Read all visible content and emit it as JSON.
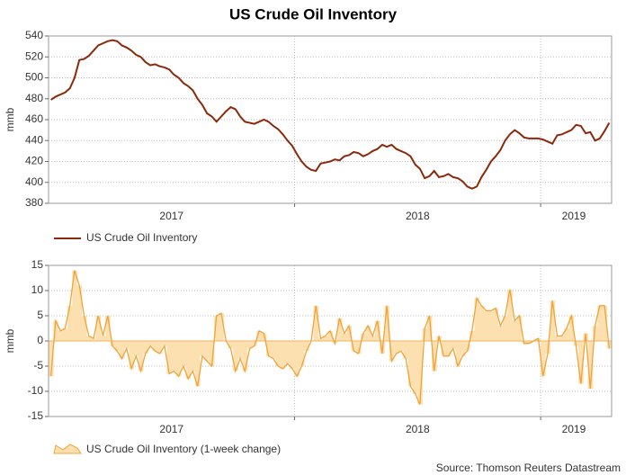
{
  "title": "US Crude Oil Inventory",
  "source": "Source: Thomson Reuters Datastream",
  "chart_data": [
    {
      "type": "line",
      "ylabel": "mmb",
      "xlim": [
        0,
        119
      ],
      "xticks": [
        {
          "value": 26,
          "label": "2017"
        },
        {
          "value": 78,
          "label": "2018"
        },
        {
          "value": 111,
          "label": "2019"
        }
      ],
      "xgrid": [
        52,
        104
      ],
      "ylim": [
        380,
        540
      ],
      "yticks": [
        380,
        400,
        420,
        440,
        460,
        480,
        500,
        520,
        540
      ],
      "grid": true,
      "series": [
        {
          "name": "US Crude Oil Inventory",
          "color": "#8b2a0a",
          "values": [
            479,
            482,
            484,
            486,
            490,
            500,
            517,
            518,
            521,
            526,
            531,
            533,
            535,
            536,
            535,
            531,
            529,
            526,
            522,
            520,
            515,
            512,
            513,
            511,
            510,
            508,
            503,
            500,
            495,
            492,
            488,
            480,
            474,
            466,
            463,
            458,
            463,
            468,
            472,
            470,
            463,
            458,
            457,
            456,
            458,
            460,
            458,
            454,
            451,
            446,
            440,
            435,
            427,
            420,
            415,
            412,
            411,
            418,
            419,
            420,
            422,
            421,
            425,
            426,
            429,
            428,
            425,
            427,
            430,
            432,
            436,
            434,
            436,
            432,
            430,
            428,
            425,
            417,
            413,
            404,
            406,
            411,
            405,
            406,
            408,
            405,
            404,
            401,
            396,
            394,
            396,
            405,
            412,
            420,
            425,
            431,
            440,
            446,
            450,
            447,
            443,
            442,
            442,
            442,
            441,
            439,
            437,
            445,
            446,
            448,
            450,
            455,
            454,
            447,
            448,
            440,
            442,
            449,
            457
          ]
        }
      ]
    },
    {
      "type": "area",
      "ylabel": "mmb",
      "xlim": [
        0,
        119
      ],
      "xticks": [
        {
          "value": 26,
          "label": "2017"
        },
        {
          "value": 78,
          "label": "2018"
        },
        {
          "value": 111,
          "label": "2019"
        }
      ],
      "xgrid": [
        52,
        104
      ],
      "ylim": [
        -15,
        15
      ],
      "yticks": [
        -15,
        -10,
        -5,
        0,
        5,
        10,
        15
      ],
      "grid": true,
      "series": [
        {
          "name": "US Crude Oil Inventory (1-week change)",
          "color": "#f0a33a",
          "fill": "#fde0b0",
          "values": [
            -7,
            4,
            2,
            2.5,
            7,
            14,
            11,
            5,
            1,
            0.5,
            5,
            1,
            5,
            -1,
            -2,
            -3.5,
            -1.5,
            -5.5,
            -3,
            -6,
            -2.5,
            -1,
            -2,
            -2.5,
            -1,
            -6.5,
            -6,
            -7,
            -5,
            -7.5,
            -6,
            -9,
            -3,
            -4,
            -5,
            5,
            5.5,
            0,
            -1.5,
            -6,
            -3.5,
            -6,
            -1.5,
            -1,
            2,
            1.5,
            -3,
            -3.5,
            -5,
            -5.5,
            -4.5,
            -5.5,
            -7,
            -5,
            -2,
            0,
            7,
            0.5,
            1,
            2,
            -0.5,
            4.5,
            1.5,
            3,
            -2,
            -2.5,
            1.5,
            3,
            1,
            4,
            -2.5,
            7,
            -4,
            -2.5,
            -2,
            -3.5,
            -9,
            -10.5,
            -12.6,
            2.5,
            5,
            -6,
            1,
            -3,
            -3,
            -1.5,
            -5,
            -3,
            -2,
            2,
            8.5,
            7,
            6,
            6,
            6.5,
            3,
            5,
            10.2,
            4,
            5,
            -0.5,
            -0.5,
            0,
            0.5,
            -7,
            -2.5,
            8,
            1,
            1,
            2.5,
            5,
            -1,
            -8.5,
            1.5,
            -9.5,
            3,
            7,
            7,
            -1.5
          ]
        }
      ]
    }
  ]
}
